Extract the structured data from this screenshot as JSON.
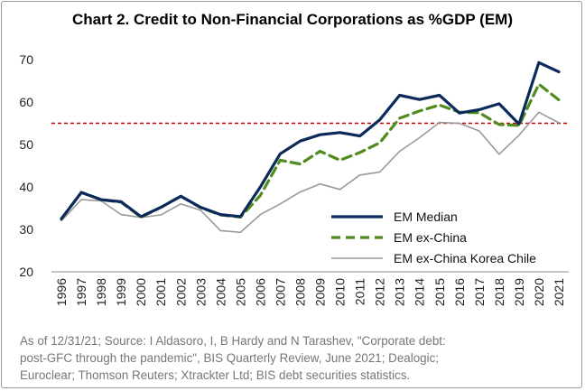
{
  "chart_data": {
    "type": "line",
    "title": "Chart 2. Credit to Non-Financial Corporations as %GDP (EM)",
    "x": [
      "1996",
      "1997",
      "1998",
      "1999",
      "2000",
      "2001",
      "2002",
      "2003",
      "2004",
      "2005",
      "2006",
      "2007",
      "2008",
      "2009",
      "2010",
      "2011",
      "2012",
      "2013",
      "2014",
      "2015",
      "2016",
      "2017",
      "2018",
      "2019",
      "2020",
      "2021"
    ],
    "ylim": [
      20,
      70
    ],
    "yticks": [
      "20",
      "30",
      "40",
      "50",
      "60",
      "70"
    ],
    "reference_line": {
      "y": 55,
      "color": "#c00000",
      "style": "dashed"
    },
    "legend_position": "lower-right",
    "series": [
      {
        "name": "EM Median",
        "color": "#0b2a5b",
        "style": "solid",
        "values": [
          32.5,
          38.7,
          37.0,
          36.5,
          33.0,
          35.2,
          37.8,
          35.2,
          33.5,
          33.0,
          40.0,
          47.8,
          50.8,
          52.3,
          52.8,
          52.0,
          55.8,
          61.6,
          60.6,
          61.6,
          57.4,
          58.2,
          59.6,
          54.8,
          69.3,
          67.1
        ]
      },
      {
        "name": "EM ex-China",
        "color": "#4f8b1d",
        "style": "dashed",
        "values": [
          32.5,
          38.7,
          37.0,
          36.4,
          32.9,
          35.2,
          37.8,
          35.1,
          33.4,
          32.9,
          38.0,
          46.3,
          45.4,
          48.4,
          46.3,
          48.1,
          50.4,
          56.2,
          57.9,
          59.3,
          57.6,
          57.5,
          54.7,
          54.5,
          64.2,
          60.5
        ]
      },
      {
        "name": "EM ex-China Korea Chile",
        "color": "#9a9a9a",
        "style": "solid",
        "values": [
          32.0,
          37.0,
          36.7,
          33.5,
          32.8,
          33.4,
          36.0,
          34.5,
          29.7,
          29.3,
          33.5,
          36.0,
          38.8,
          40.7,
          39.4,
          42.8,
          43.5,
          48.4,
          51.6,
          55.2,
          55.0,
          53.2,
          47.7,
          52.2,
          57.6,
          55.1
        ]
      }
    ]
  },
  "source_note": {
    "lines": [
      "As of 12/31/21; Source: I Aldasoro, I, B Hardy and N Tarashev, \"Corporate debt:",
      "post-GFC through the pandemic\", BIS Quarterly Review, June 2021; Dealogic;",
      "Euroclear; Thomson Reuters; Xtrackter Ltd; BIS debt securities statistics."
    ]
  }
}
